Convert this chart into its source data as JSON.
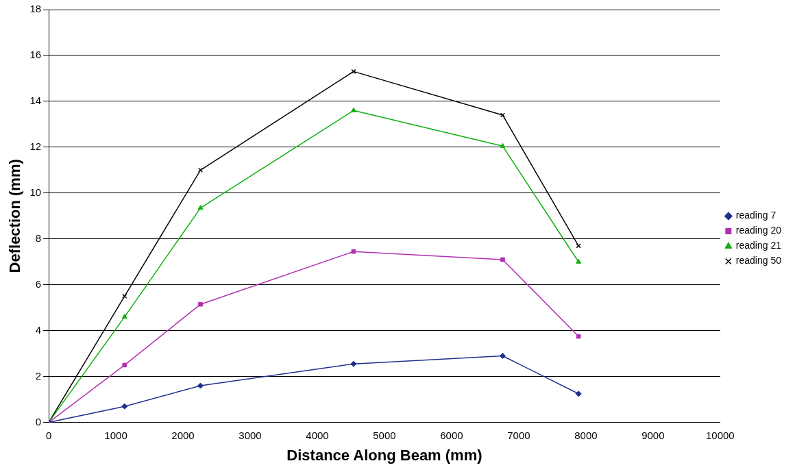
{
  "chart_data": {
    "type": "line",
    "xlabel": "Distance Along Beam (mm)",
    "ylabel": "Deflection (mm)",
    "x": [
      0,
      1130,
      2260,
      4540,
      6760,
      7890
    ],
    "series": [
      {
        "name": "reading 7",
        "color": "#1f2f8f",
        "marker": "diamond",
        "values": [
          0,
          0.7,
          1.6,
          2.55,
          2.9,
          1.25
        ]
      },
      {
        "name": "reading 20",
        "color": "#b030b0",
        "marker": "square",
        "values": [
          0,
          2.5,
          5.15,
          7.45,
          7.1,
          3.75
        ]
      },
      {
        "name": "reading 21",
        "color": "#10b010",
        "marker": "triangle",
        "values": [
          0,
          4.6,
          9.35,
          13.6,
          12.05,
          7.0
        ]
      },
      {
        "name": "reading 50",
        "color": "#000000",
        "marker": "cross",
        "values": [
          0,
          5.5,
          11.0,
          15.3,
          13.4,
          7.7
        ]
      }
    ],
    "xlim": [
      0,
      10000
    ],
    "xticks": [
      0,
      1000,
      2000,
      3000,
      4000,
      5000,
      6000,
      7000,
      8000,
      9000,
      10000
    ],
    "ylim": [
      0,
      18
    ],
    "yticks": [
      0,
      2,
      4,
      6,
      8,
      10,
      12,
      14,
      16,
      18
    ],
    "grid": "y",
    "legend": "right",
    "line_style": "solid"
  }
}
